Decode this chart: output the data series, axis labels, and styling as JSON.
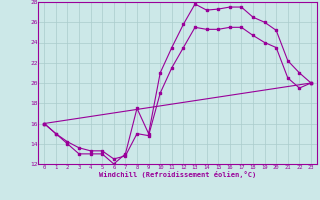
{
  "xlabel": "Windchill (Refroidissement éolien,°C)",
  "bg_color": "#cce8e8",
  "line_color": "#990099",
  "grid_color": "#aacccc",
  "xlim": [
    -0.5,
    23.5
  ],
  "ylim": [
    12,
    28
  ],
  "xticks": [
    0,
    1,
    2,
    3,
    4,
    5,
    6,
    7,
    8,
    9,
    10,
    11,
    12,
    13,
    14,
    15,
    16,
    17,
    18,
    19,
    20,
    21,
    22,
    23
  ],
  "yticks": [
    12,
    14,
    16,
    18,
    20,
    22,
    24,
    26,
    28
  ],
  "line1_x": [
    0,
    1,
    2,
    3,
    4,
    5,
    6,
    7,
    8,
    9,
    10,
    11,
    12,
    13,
    14,
    15,
    16,
    17,
    18,
    19,
    20,
    21,
    22,
    23
  ],
  "line1_y": [
    16,
    15,
    14,
    13,
    13,
    13,
    12,
    13,
    17.5,
    15,
    21,
    23.5,
    25.8,
    27.8,
    27.2,
    27.3,
    27.5,
    27.5,
    26.5,
    26.0,
    25.2,
    22.2,
    21.0,
    20.0
  ],
  "line2_x": [
    0,
    1,
    2,
    3,
    4,
    5,
    6,
    7,
    8,
    9,
    10,
    11,
    12,
    13,
    14,
    15,
    16,
    17,
    18,
    19,
    20,
    21,
    22,
    23
  ],
  "line2_y": [
    16,
    15,
    14.2,
    13.6,
    13.3,
    13.3,
    12.5,
    12.8,
    15.0,
    14.8,
    19.0,
    21.5,
    23.5,
    25.5,
    25.3,
    25.3,
    25.5,
    25.5,
    24.7,
    24.0,
    23.5,
    20.5,
    19.5,
    20.0
  ],
  "line3_x": [
    0,
    23
  ],
  "line3_y": [
    16,
    20.0
  ]
}
